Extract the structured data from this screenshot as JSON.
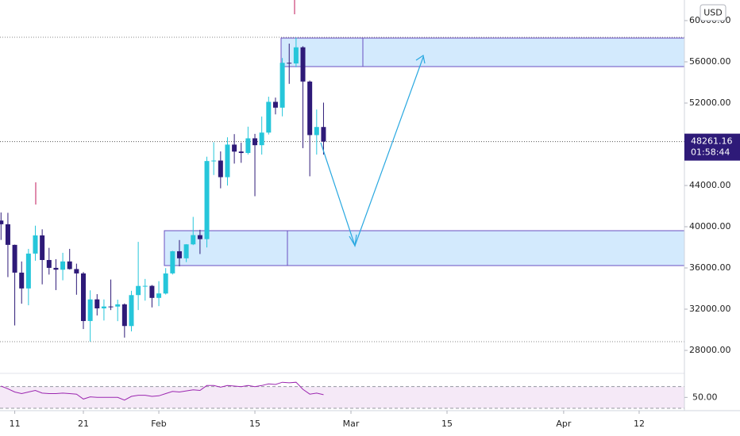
{
  "chart_data": {
    "type": "candlestick",
    "currency": "USD",
    "x": [
      9,
      10,
      11,
      12,
      13,
      14,
      15,
      16,
      17,
      18,
      19,
      20,
      21,
      22,
      23,
      24,
      25,
      26,
      27,
      28,
      29,
      30,
      31,
      32,
      33,
      34,
      35,
      36,
      37,
      38,
      39,
      40,
      41,
      42,
      43,
      44,
      45,
      46,
      47,
      48,
      49,
      50,
      51,
      52,
      53,
      54,
      55,
      56
    ],
    "open": [
      40600,
      40240,
      38240,
      35545,
      34011,
      37393,
      39158,
      36770,
      36007,
      35828,
      36631,
      35891,
      35468,
      30852,
      32950,
      32078,
      32259,
      32251,
      32464,
      30362,
      33368,
      34246,
      34262,
      33092,
      33517,
      35472,
      37620,
      36936,
      38289,
      39181,
      38795,
      46374,
      46420,
      44807,
      47968,
      47298,
      47157,
      48580,
      47911,
      49133,
      52117,
      51552,
      55906,
      55841,
      57412,
      54087,
      48891,
      49676
    ],
    "high": [
      41380,
      41350,
      38264,
      36628,
      37850,
      40100,
      39747,
      37950,
      36852,
      37469,
      37850,
      36415,
      35600,
      33827,
      33456,
      32946,
      34875,
      32921,
      32557,
      33783,
      38531,
      34933,
      34342,
      34717,
      35984,
      37662,
      38708,
      38310,
      40955,
      39700,
      46794,
      48200,
      47310,
      48678,
      48985,
      48150,
      49707,
      49010,
      50690,
      52618,
      52530,
      56368,
      57767,
      58352,
      57508,
      54183,
      51374,
      52041
    ],
    "low": [
      38720,
      35111,
      30420,
      32531,
      32380,
      36701,
      34408,
      35357,
      33850,
      34800,
      35844,
      33400,
      30071,
      28850,
      31390,
      30900,
      31910,
      30837,
      29241,
      29842,
      31915,
      32825,
      32171,
      32296,
      33418,
      35362,
      36161,
      36570,
      38215,
      37351,
      37988,
      45020,
      43727,
      43995,
      46125,
      46202,
      47014,
      42960,
      47003,
      48947,
      50901,
      50710,
      53863,
      55477,
      47622,
      44892,
      47004,
      47002
    ],
    "close": [
      40240,
      38240,
      35545,
      34011,
      37393,
      39158,
      36770,
      36007,
      35828,
      36631,
      35891,
      35468,
      30850,
      32945,
      32078,
      32259,
      32254,
      32467,
      30366,
      33364,
      34252,
      34262,
      33092,
      33526,
      35466,
      37618,
      36936,
      38290,
      39186,
      38795,
      46374,
      46420,
      44807,
      47969,
      47287,
      47153,
      48577,
      47911,
      49133,
      52119,
      51552,
      55906,
      55841,
      57408,
      54087,
      48892,
      49676,
      48261.16
    ],
    "up_color": "#26c6da",
    "down_color": "#2e1a78",
    "xlim": [
      8.85,
      108.6
    ],
    "xticks": [
      11,
      21,
      {
        "value": 32,
        "label": "Feb"
      },
      {
        "value": 46,
        "label": "15"
      },
      {
        "value": 60,
        "label": "Mar"
      },
      {
        "value": 74,
        "label": "15"
      },
      {
        "value": 91,
        "label": "Apr"
      },
      {
        "value": 102,
        "label": "12"
      }
    ],
    "ylim": [
      25846,
      62000
    ],
    "yticks": [
      {
        "value": 60000,
        "label": "60000.00"
      },
      {
        "value": 56000,
        "label": "56000.00"
      },
      {
        "value": 52000,
        "label": "52000.00"
      },
      {
        "value": 48000,
        "label": "48000.00"
      },
      {
        "value": 44000,
        "label": "44000.00"
      },
      {
        "value": 40000,
        "label": "40000.00"
      },
      {
        "value": 36000,
        "label": "36000.00"
      },
      {
        "value": 32000,
        "label": "32000.00"
      },
      {
        "value": 28000,
        "label": "28000.00"
      }
    ],
    "last_price": 48261.16,
    "countdown": "01:58:44",
    "rsi": {
      "color": "#9c27b0",
      "values": [
        71,
        66,
        60,
        57,
        60,
        63,
        58,
        57,
        57,
        58,
        57,
        56,
        47,
        51,
        50,
        50,
        50,
        50,
        45,
        52,
        54,
        54,
        52,
        53,
        57,
        61,
        60,
        62,
        64,
        63,
        72,
        72,
        69,
        72,
        71,
        70,
        72,
        70,
        72,
        75,
        74,
        78,
        77,
        78,
        65,
        56,
        58,
        55
      ],
      "ylim": [
        27,
        93
      ],
      "bands": [
        70,
        30
      ],
      "yticks": [
        {
          "value": 50,
          "label": "50.00"
        }
      ]
    }
  }
}
